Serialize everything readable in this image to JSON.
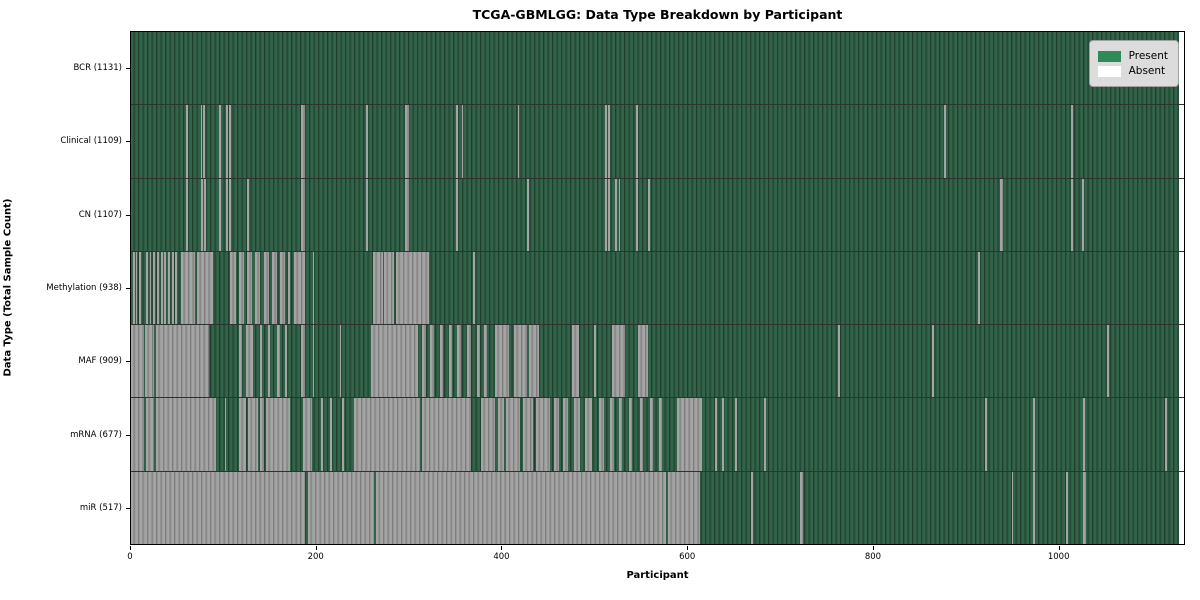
{
  "title": "TCGA-GBMLGG: Data Type Breakdown by Participant",
  "xlabel": "Participant",
  "ylabel": "Data Type (Total Sample Count)",
  "legend": {
    "present_label": "Present",
    "absent_label": "Absent",
    "position": "upper right"
  },
  "chart_data": {
    "type": "heatmap",
    "title": "TCGA-GBMLGG: Data Type Breakdown by Participant",
    "xlabel": "Participant",
    "ylabel": "Data Type (Total Sample Count)",
    "x_ticks": [
      0,
      200,
      400,
      600,
      800,
      1000
    ],
    "x_domain": 1136,
    "n_participants": 1131,
    "grid": false,
    "legend_entries": [
      "Present",
      "Absent"
    ],
    "legend_position": "upper right",
    "colors": {
      "present_fill": "#2e8b57",
      "present_stripe_dark": "#1f402c",
      "absent_fill": "#ffffff",
      "absent_stripe_gray": "#9a9a9a",
      "legend_bg": "#dcdcdc",
      "frame": "#000000"
    },
    "rows": [
      {
        "key": "bcr",
        "label": "BCR (1131)",
        "name": "BCR",
        "total": 1131,
        "base": "present",
        "segments": []
      },
      {
        "key": "clinical",
        "label": "Clinical (1109)",
        "name": "Clinical",
        "total": 1109,
        "base": "present",
        "segments": [
          [
            59,
            61,
            "absent"
          ],
          [
            75,
            76.5,
            "absent"
          ],
          [
            78,
            80,
            "absent"
          ],
          [
            95,
            97,
            "absent"
          ],
          [
            103,
            104.5,
            "absent"
          ],
          [
            106,
            107.5,
            "absent"
          ],
          [
            183,
            188,
            "absent"
          ],
          [
            254,
            256,
            "absent"
          ],
          [
            296,
            300,
            "absent"
          ],
          [
            351,
            353,
            "absent"
          ],
          [
            357,
            358.5,
            "absent"
          ],
          [
            417,
            419,
            "absent"
          ],
          [
            511,
            513,
            "absent"
          ],
          [
            515,
            517,
            "absent"
          ],
          [
            545,
            547,
            "absent"
          ],
          [
            877,
            879,
            "absent"
          ],
          [
            1014,
            1016.5,
            "absent"
          ]
        ]
      },
      {
        "key": "cn",
        "label": "CN (1107)",
        "name": "CN",
        "total": 1107,
        "base": "present",
        "segments": [
          [
            59,
            61,
            "absent"
          ],
          [
            76,
            77.5,
            "absent"
          ],
          [
            79,
            81,
            "absent"
          ],
          [
            95,
            97,
            "absent"
          ],
          [
            103,
            104.5,
            "absent"
          ],
          [
            106,
            107.5,
            "absent"
          ],
          [
            125,
            127,
            "absent"
          ],
          [
            183,
            188,
            "absent"
          ],
          [
            254,
            256,
            "absent"
          ],
          [
            296,
            300,
            "absent"
          ],
          [
            351,
            353,
            "absent"
          ],
          [
            427,
            429,
            "absent"
          ],
          [
            511,
            513,
            "absent"
          ],
          [
            515,
            517,
            "absent"
          ],
          [
            522,
            524,
            "absent"
          ],
          [
            526,
            527.5,
            "absent"
          ],
          [
            545,
            547,
            "absent"
          ],
          [
            558,
            560,
            "absent"
          ],
          [
            938,
            940.5,
            "absent"
          ],
          [
            1014,
            1016.5,
            "absent"
          ],
          [
            1026,
            1028.5,
            "absent"
          ]
        ]
      },
      {
        "key": "methylation",
        "label": "Methylation (938)",
        "name": "Methylation",
        "total": 938,
        "base": "present",
        "segments": [
          [
            2.5,
            4,
            "absent"
          ],
          [
            5.5,
            7,
            "absent"
          ],
          [
            9,
            11,
            "absent"
          ],
          [
            16,
            18,
            "absent"
          ],
          [
            20,
            22,
            "absent"
          ],
          [
            24,
            26,
            "absent"
          ],
          [
            28,
            30,
            "absent"
          ],
          [
            32,
            34,
            "absent"
          ],
          [
            36,
            38,
            "absent"
          ],
          [
            40,
            42,
            "absent"
          ],
          [
            44,
            46,
            "absent"
          ],
          [
            48,
            50,
            "absent"
          ],
          [
            54,
            69,
            "absent"
          ],
          [
            71,
            88,
            "absent"
          ],
          [
            107,
            113,
            "absent"
          ],
          [
            116,
            122,
            "absent"
          ],
          [
            125,
            131,
            "absent"
          ],
          [
            134,
            139,
            "absent"
          ],
          [
            144,
            149,
            "absent"
          ],
          [
            152,
            158,
            "absent"
          ],
          [
            161,
            166,
            "absent"
          ],
          [
            169,
            172,
            "absent"
          ],
          [
            176,
            188,
            "absent"
          ],
          [
            196,
            197.5,
            "absent"
          ],
          [
            261,
            271.5,
            "absent"
          ],
          [
            273,
            283.5,
            "absent"
          ],
          [
            285.5,
            322,
            "absent"
          ],
          [
            369,
            371,
            "absent"
          ],
          [
            914,
            916,
            "absent"
          ]
        ]
      },
      {
        "key": "maf",
        "label": "MAF (909)",
        "name": "MAF",
        "total": 909,
        "base": "present",
        "segments": [
          [
            0,
            13.5,
            "absent"
          ],
          [
            15.5,
            25,
            "absent"
          ],
          [
            27,
            84,
            "absent"
          ],
          [
            116,
            120,
            "absent"
          ],
          [
            124,
            132,
            "absent"
          ],
          [
            139,
            141.5,
            "absent"
          ],
          [
            148,
            150.5,
            "absent"
          ],
          [
            158,
            160.5,
            "absent"
          ],
          [
            166,
            168.5,
            "absent"
          ],
          [
            183,
            188,
            "absent"
          ],
          [
            196,
            197.5,
            "absent"
          ],
          [
            225,
            227,
            "absent"
          ],
          [
            259,
            310,
            "absent"
          ],
          [
            314,
            318,
            "absent"
          ],
          [
            323,
            327,
            "absent"
          ],
          [
            333,
            337,
            "absent"
          ],
          [
            343,
            346.5,
            "absent"
          ],
          [
            352,
            356,
            "absent"
          ],
          [
            363,
            366.5,
            "absent"
          ],
          [
            373,
            377,
            "absent"
          ],
          [
            381,
            384,
            "absent"
          ],
          [
            393,
            408,
            "absent"
          ],
          [
            413,
            427,
            "absent"
          ],
          [
            429,
            440,
            "absent"
          ],
          [
            476,
            483,
            "absent"
          ],
          [
            500,
            501.5,
            "absent"
          ],
          [
            519,
            533,
            "absent"
          ],
          [
            547,
            558,
            "absent"
          ],
          [
            763,
            765,
            "absent"
          ],
          [
            864,
            866,
            "absent"
          ],
          [
            1053,
            1055,
            "absent"
          ]
        ]
      },
      {
        "key": "mrna",
        "label": "mRNA (677)",
        "name": "mRNA",
        "total": 677,
        "base": "present",
        "segments": [
          [
            0,
            14.5,
            "absent"
          ],
          [
            16.5,
            25,
            "absent"
          ],
          [
            27,
            92,
            "absent"
          ],
          [
            101,
            102.5,
            "absent"
          ],
          [
            117,
            124,
            "absent"
          ],
          [
            126,
            137.5,
            "absent"
          ],
          [
            139.5,
            143.5,
            "absent"
          ],
          [
            145.5,
            172,
            "absent"
          ],
          [
            186,
            195,
            "absent"
          ],
          [
            205,
            207,
            "absent"
          ],
          [
            215,
            217,
            "absent"
          ],
          [
            228,
            230,
            "absent"
          ],
          [
            241,
            312,
            "absent"
          ],
          [
            314,
            367,
            "absent"
          ],
          [
            378,
            393,
            "absent"
          ],
          [
            396,
            402,
            "absent"
          ],
          [
            405,
            419.5,
            "absent"
          ],
          [
            423,
            433.5,
            "absent"
          ],
          [
            437,
            452,
            "absent"
          ],
          [
            456,
            462,
            "absent"
          ],
          [
            466,
            472,
            "absent"
          ],
          [
            478,
            484,
            "absent"
          ],
          [
            490,
            497,
            "absent"
          ],
          [
            505,
            510,
            "absent"
          ],
          [
            517,
            521,
            "absent"
          ],
          [
            527,
            530,
            "absent"
          ],
          [
            537,
            540,
            "absent"
          ],
          [
            549,
            552,
            "absent"
          ],
          [
            560,
            563,
            "absent"
          ],
          [
            570,
            573,
            "absent"
          ],
          [
            589,
            616,
            "absent"
          ],
          [
            630,
            632,
            "absent"
          ],
          [
            638,
            640,
            "absent"
          ],
          [
            652,
            654,
            "absent"
          ],
          [
            683,
            685,
            "absent"
          ],
          [
            921,
            923,
            "absent"
          ],
          [
            973,
            975,
            "absent"
          ],
          [
            1027,
            1029,
            "absent"
          ],
          [
            1116,
            1118,
            "absent"
          ]
        ]
      },
      {
        "key": "mir",
        "label": "miR (517)",
        "name": "miR",
        "total": 517,
        "base": "present",
        "segments": [
          [
            0,
            188,
            "absent"
          ],
          [
            190.5,
            262,
            "absent"
          ],
          [
            264.5,
            577,
            "absent"
          ],
          [
            579.5,
            614,
            "absent"
          ],
          [
            669,
            671,
            "absent"
          ],
          [
            722,
            724.5,
            "absent"
          ],
          [
            950,
            952,
            "absent"
          ],
          [
            973,
            975.5,
            "absent"
          ],
          [
            1009,
            1011,
            "absent"
          ],
          [
            1027,
            1030,
            "absent"
          ]
        ]
      }
    ]
  }
}
